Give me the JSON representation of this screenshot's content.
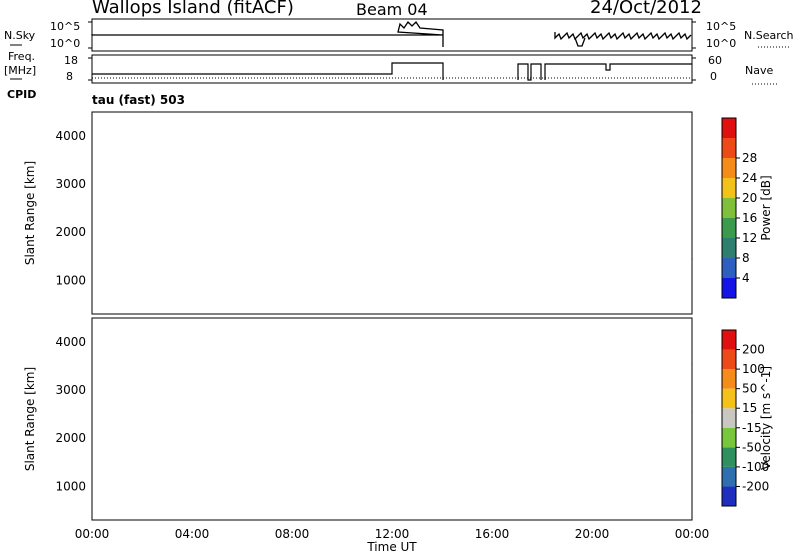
{
  "header": {
    "site": "Wallops Island (fitACF)",
    "beam": "Beam 04",
    "date": "24/Oct/2012"
  },
  "top_panels": {
    "nsky_label": "N.Sky",
    "nsearch_label": "N.Search",
    "freq_label_line1": "Freq.",
    "freq_label_line2": "[MHz]",
    "nave_label": "Nave",
    "cpid_label": "CPID",
    "cpid_value": "tau (fast) 503",
    "noise_ticks_left": [
      "10^5",
      "10^0"
    ],
    "noise_ticks_right": [
      "10^5",
      "10^0"
    ],
    "freq_ticks": [
      "18",
      "8"
    ],
    "nave_ticks": [
      "60",
      "0"
    ]
  },
  "chart_data": [
    {
      "type": "heatmap",
      "name": "power",
      "ylabel": "Slant Range [km]",
      "yticks": [
        "1000",
        "2000",
        "3000",
        "4000"
      ],
      "ylim": [
        300,
        4500
      ],
      "xlim": [
        0,
        24
      ],
      "colorbar_label": "Power [dB]",
      "colorbar_ticks": [
        "4",
        "8",
        "12",
        "16",
        "20",
        "24",
        "28"
      ],
      "colorbar_colors": [
        "#1414e6",
        "#2e5fbf",
        "#2f7f6f",
        "#3c9a4c",
        "#7fbf3c",
        "#f2c21b",
        "#f58c1a",
        "#ee4a18",
        "#e01010"
      ]
    },
    {
      "type": "heatmap",
      "name": "velocity",
      "ylabel": "Slant Range [km]",
      "xlabel": "Time UT",
      "yticks": [
        "1000",
        "2000",
        "3000",
        "4000"
      ],
      "xticks": [
        "00:00",
        "04:00",
        "08:00",
        "12:00",
        "16:00",
        "20:00",
        "00:00"
      ],
      "ylim": [
        300,
        4500
      ],
      "xlim": [
        0,
        24
      ],
      "colorbar_label": "Velocity [m s^-1]",
      "colorbar_ticks": [
        "200",
        "100",
        "50",
        "15",
        "-15",
        "-50",
        "-100",
        "-200"
      ],
      "colorbar_colors": [
        "#1e2fbf",
        "#2e6fb0",
        "#2f8f5f",
        "#78c63c",
        "#c8c8c0",
        "#f5c21b",
        "#f58c1a",
        "#ee4a18",
        "#e01010"
      ]
    }
  ]
}
